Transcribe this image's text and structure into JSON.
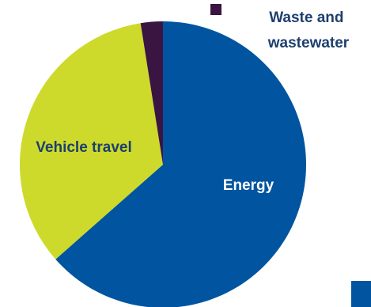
{
  "chart_data": {
    "type": "pie",
    "title": "",
    "slices": [
      {
        "label": "Energy",
        "value": 63.5,
        "color": "#0054A0",
        "label_color": "#ffffff"
      },
      {
        "label": "Vehicle travel",
        "value": 34.0,
        "color": "#CDDA2B",
        "label_color": "#1d3f6e"
      },
      {
        "label": "Waste and wastewater",
        "value": 2.5,
        "color": "#3B1542",
        "label_color": "#1d3f6e"
      }
    ],
    "legend": {
      "visible": false
    }
  }
}
